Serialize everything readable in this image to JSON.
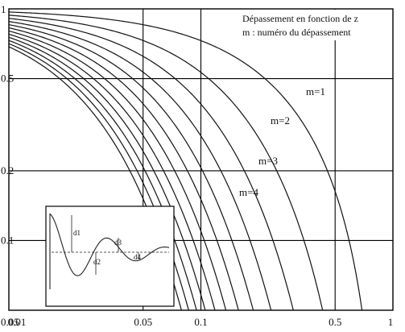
{
  "chart_data": {
    "type": "line",
    "title_lines": [
      "Dépassement en fonction de z",
      "m : numéro du dépassement"
    ],
    "x_scale": "log",
    "y_scale": "log",
    "xlim": [
      0.01,
      1
    ],
    "ylim": [
      0.05,
      1
    ],
    "x_ticks": [
      "0.01",
      "0.05",
      "0.1",
      "0.5",
      "1"
    ],
    "y_ticks": [
      "1",
      "0.5",
      "0.2",
      "0.1",
      "0.05"
    ],
    "grid": true,
    "curve_labels": [
      "m=1",
      "m=2",
      "m=3",
      "m=4"
    ],
    "series": [
      {
        "m": 1
      },
      {
        "m": 2
      },
      {
        "m": 3
      },
      {
        "m": 4
      },
      {
        "m": 5
      },
      {
        "m": 6
      },
      {
        "m": 7
      },
      {
        "m": 8
      },
      {
        "m": 9
      },
      {
        "m": 10
      },
      {
        "m": 11
      },
      {
        "m": 12
      }
    ],
    "inset_labels": [
      "d1",
      "d2",
      "d3",
      "d4"
    ]
  }
}
